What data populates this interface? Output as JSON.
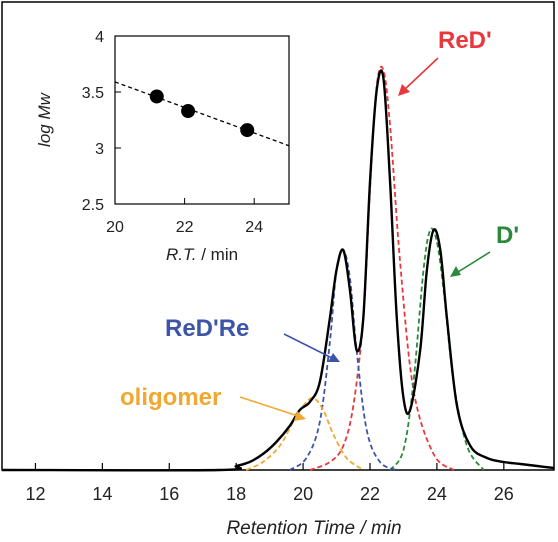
{
  "chart_data": [
    {
      "type": "line",
      "title": "",
      "xlabel": "Retention Time / min",
      "ylabel": "",
      "xlim": [
        11,
        27.5
      ],
      "xticks": [
        12,
        14,
        16,
        18,
        20,
        22,
        24,
        26
      ],
      "ylim": [
        0,
        1.05
      ],
      "series": [
        {
          "name": "ReD'",
          "color": "#e8383d",
          "style": "dashed",
          "x": [
            20.2,
            20.8,
            21.2,
            21.5,
            21.8,
            22.0,
            22.2,
            22.4,
            22.6,
            22.9,
            23.3,
            23.9,
            24.5
          ],
          "y": [
            0.0,
            0.02,
            0.06,
            0.16,
            0.38,
            0.7,
            0.96,
            1.0,
            0.86,
            0.52,
            0.2,
            0.04,
            0.0
          ]
        },
        {
          "name": "D'",
          "color": "#2a8a3a",
          "style": "dashed",
          "x": [
            22.6,
            23.0,
            23.3,
            23.6,
            23.8,
            24.0,
            24.2,
            24.5,
            24.9,
            25.4
          ],
          "y": [
            0.0,
            0.05,
            0.22,
            0.5,
            0.6,
            0.57,
            0.45,
            0.22,
            0.06,
            0.0
          ]
        },
        {
          "name": "ReD'Re",
          "color": "#3d55a8",
          "style": "dashed",
          "x": [
            19.6,
            20.1,
            20.5,
            20.8,
            21.0,
            21.2,
            21.4,
            21.6,
            21.9,
            22.3,
            22.8
          ],
          "y": [
            0.0,
            0.03,
            0.12,
            0.32,
            0.5,
            0.55,
            0.48,
            0.3,
            0.1,
            0.02,
            0.0
          ]
        },
        {
          "name": "oligomer",
          "color": "#f0a830",
          "style": "dashed",
          "x": [
            18.3,
            18.8,
            19.3,
            19.7,
            20.0,
            20.3,
            20.6,
            20.9,
            21.3,
            21.8
          ],
          "y": [
            0.0,
            0.02,
            0.06,
            0.12,
            0.16,
            0.18,
            0.15,
            0.09,
            0.03,
            0.0
          ]
        },
        {
          "name": "",
          "color": "#000000",
          "style": "solid",
          "x": [
            11.0,
            17.5,
            18.0,
            18.4,
            18.8,
            19.2,
            19.6,
            19.9,
            20.2,
            20.5,
            20.8,
            21.0,
            21.2,
            21.4,
            21.6,
            21.8,
            22.0,
            22.2,
            22.4,
            22.6,
            22.8,
            23.0,
            23.2,
            23.5,
            23.7,
            23.9,
            24.1,
            24.3,
            24.6,
            25.0,
            25.5,
            26.0,
            26.5,
            27.0,
            27.5
          ],
          "y": [
            0.0,
            0.0,
            0.01,
            0.02,
            0.04,
            0.07,
            0.11,
            0.15,
            0.17,
            0.22,
            0.38,
            0.5,
            0.55,
            0.45,
            0.3,
            0.38,
            0.72,
            0.95,
            0.98,
            0.72,
            0.38,
            0.18,
            0.15,
            0.3,
            0.5,
            0.6,
            0.55,
            0.38,
            0.16,
            0.06,
            0.03,
            0.02,
            0.015,
            0.01,
            0.005
          ]
        }
      ],
      "annotations": [
        "ReD'",
        "D'",
        "ReD'Re",
        "oligomer"
      ],
      "grid": false
    },
    {
      "type": "scatter",
      "title": "",
      "xlabel": "R.T. / min",
      "ylabel": "log Mw",
      "xlim": [
        20,
        25
      ],
      "ylim": [
        2.5,
        4
      ],
      "xticks": [
        20,
        22,
        24
      ],
      "yticks": [
        2.5,
        3,
        3.5,
        4
      ],
      "points": {
        "x": [
          21.2,
          22.1,
          23.8
        ],
        "y": [
          3.46,
          3.33,
          3.16
        ]
      },
      "fit_line": {
        "x": [
          20,
          25
        ],
        "y": [
          3.59,
          3.02
        ],
        "style": "dashed"
      },
      "grid": false
    }
  ],
  "labels": {
    "x_axis_prefix": "Retention Time",
    "x_axis_suffix": " / min",
    "inset_x_italic": "R.T.",
    "inset_x_suffix": " / min",
    "inset_y": "log Mw"
  }
}
